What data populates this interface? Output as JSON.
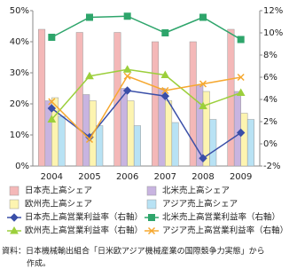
{
  "chart_data": {
    "type": "bar",
    "categories": [
      "2004",
      "2005",
      "2006",
      "2007",
      "2008",
      "2009"
    ],
    "series": [
      {
        "name": "日本売上高シェア",
        "color": "#f4b8b8",
        "values": [
          44,
          43,
          43,
          40,
          40,
          44
        ]
      },
      {
        "name": "北米売上高シェア",
        "color": "#c8b4e0",
        "values": [
          21,
          23,
          25,
          25,
          26,
          24
        ]
      },
      {
        "name": "欧州売上高シェア",
        "color": "#fdf4b0",
        "values": [
          22,
          21,
          21,
          21,
          24,
          17
        ]
      },
      {
        "name": "アジア売上高シェア",
        "color": "#b8e2f4",
        "values": [
          16,
          13,
          13,
          14,
          15,
          15
        ]
      },
      {
        "name": "日本売上高営業利益率（右軸）",
        "color": "#3a4fa8",
        "type": "line",
        "axis": "y2",
        "marker": "diamond",
        "values": [
          3.2,
          0.6,
          4.8,
          4.3,
          -1.3,
          1.0
        ]
      },
      {
        "name": "北米売上高営業利益率（右軸）",
        "color": "#2ea56b",
        "type": "line",
        "axis": "y2",
        "marker": "square",
        "values": [
          9.6,
          11.4,
          11.5,
          10,
          11.4,
          9.4
        ]
      },
      {
        "name": "欧州売上高営業利益率（右軸）",
        "color": "#9ccf3c",
        "type": "line",
        "axis": "y2",
        "marker": "triangle",
        "values": [
          2.2,
          6.1,
          6.7,
          6.2,
          3.4,
          4.6
        ]
      },
      {
        "name": "アジア売上高営業利益率（右軸）",
        "color": "#f6a830",
        "type": "line",
        "axis": "y2",
        "marker": "cross",
        "values": [
          3.8,
          0.4,
          6.1,
          4.8,
          5.4,
          6.0
        ]
      }
    ],
    "ylim": [
      0,
      50
    ],
    "yticks": [
      {
        "value": 0,
        "label": "0%"
      },
      {
        "value": 10,
        "label": "10%"
      },
      {
        "value": 20,
        "label": "20%"
      },
      {
        "value": 30,
        "label": "30%"
      },
      {
        "value": 40,
        "label": "40%"
      },
      {
        "value": 50,
        "label": "50%"
      }
    ],
    "y2lim": [
      -2,
      12
    ],
    "y2ticks": [
      {
        "value": -2,
        "label": "-2%"
      },
      {
        "value": 0,
        "label": "0%"
      },
      {
        "value": 2,
        "label": "2%"
      },
      {
        "value": 4,
        "label": "4%"
      },
      {
        "value": 6,
        "label": "6%"
      },
      {
        "value": 8,
        "label": "8%"
      },
      {
        "value": 10,
        "label": "10%"
      },
      {
        "value": 12,
        "label": "12%"
      }
    ],
    "grid": false,
    "legend": "bottom",
    "source": [
      "資料：日本機械輸出組合「日米欧アジア機械産業の国際競争力実態」から",
      "作成。"
    ]
  }
}
